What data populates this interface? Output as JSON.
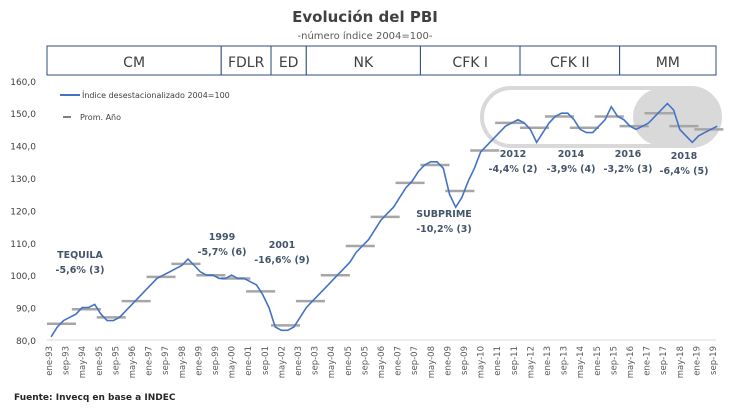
{
  "chart_data": {
    "type": "line",
    "title": "Evolución del PBI",
    "subtitle": "-número índice 2004=100-",
    "ylim": [
      80,
      160
    ],
    "yticks": [
      "80,0",
      "90,0",
      "100,0",
      "110,0",
      "120,0",
      "130,0",
      "140,0",
      "150,0",
      "160,0"
    ],
    "ytick_values": [
      80,
      90,
      100,
      110,
      120,
      130,
      140,
      150,
      160
    ],
    "xticks": [
      "ene-93",
      "sep-93",
      "may-94",
      "ene-95",
      "sep-95",
      "may-96",
      "ene-97",
      "sep-97",
      "may-98",
      "ene-99",
      "sep-99",
      "may-00",
      "ene-01",
      "sep-01",
      "may-02",
      "ene-03",
      "sep-03",
      "may-04",
      "ene-05",
      "sep-05",
      "may-06",
      "ene-07",
      "sep-07",
      "may-08",
      "ene-09",
      "sep-09",
      "may-10",
      "ene-11",
      "sep-11",
      "may-12",
      "ene-13",
      "sep-13",
      "may-14",
      "ene-15",
      "sep-15",
      "may-16",
      "ene-17",
      "sep-17",
      "may-18",
      "ene-19",
      "sep-19"
    ],
    "periods": [
      {
        "label": "CM",
        "start": "1993-01",
        "end": "1999-12"
      },
      {
        "label": "FDLR",
        "start": "1999-12",
        "end": "2001-12"
      },
      {
        "label": "ED",
        "start": "2001-12",
        "end": "2003-05"
      },
      {
        "label": "NK",
        "start": "2003-05",
        "end": "2007-12"
      },
      {
        "label": "CFK I",
        "start": "2007-12",
        "end": "2011-12"
      },
      {
        "label": "CFK II",
        "start": "2011-12",
        "end": "2015-12"
      },
      {
        "label": "MM",
        "start": "2015-12",
        "end": "2019-09"
      }
    ],
    "legend": [
      "Índice desestacionalizado 2004=100",
      "Prom. Año"
    ],
    "series": [
      {
        "name": "Índice desestacionalizado 2004=100",
        "frequency": "quarterly",
        "start_year": 1993,
        "values": [
          81,
          84,
          86,
          87,
          88,
          90,
          90,
          91,
          88,
          86,
          86,
          87,
          89,
          91,
          93,
          95,
          97,
          99,
          100,
          101,
          102,
          103,
          105,
          103,
          101,
          100,
          100,
          99,
          99,
          100,
          99,
          99,
          98,
          97,
          94,
          90,
          84,
          83,
          83,
          84,
          87,
          90,
          92,
          94,
          96,
          98,
          100,
          102,
          104,
          107,
          109,
          111,
          114,
          117,
          119,
          121,
          124,
          127,
          129,
          132,
          134,
          135,
          135,
          133,
          125,
          121,
          124,
          129,
          133,
          138,
          140,
          142,
          144,
          146,
          147,
          148,
          147,
          145,
          141,
          144,
          147,
          149,
          150,
          150,
          148,
          145,
          144,
          144,
          146,
          148,
          152,
          149,
          148,
          146,
          145,
          146,
          147,
          149,
          151,
          153,
          151,
          145,
          143,
          141,
          143,
          144,
          145,
          146
        ]
      },
      {
        "name": "Prom. Año",
        "years": [
          1993,
          1994,
          1995,
          1996,
          1997,
          1998,
          1999,
          2000,
          2001,
          2002,
          2003,
          2004,
          2005,
          2006,
          2007,
          2008,
          2009,
          2010,
          2011,
          2012,
          2013,
          2014,
          2015,
          2016,
          2017,
          2018,
          2019
        ],
        "values": [
          85,
          89.5,
          87,
          92,
          99.5,
          103.5,
          100,
          99,
          95,
          84.5,
          92,
          100,
          109,
          118,
          128.5,
          134,
          126,
          138.5,
          147,
          145.5,
          149,
          145.5,
          149,
          146,
          150,
          146,
          145
        ]
      }
    ],
    "annotations": [
      {
        "title": "TEQUILA",
        "text": "-5,6% (3)"
      },
      {
        "title": "1999",
        "text": "-5,7% (6)"
      },
      {
        "title": "2001",
        "text": "-16,6% (9)"
      },
      {
        "title": "SUBPRIME",
        "text": "-10,2% (3)"
      },
      {
        "title": "2012",
        "text": "-4,4% (2)"
      },
      {
        "title": "2014",
        "text": "-3,9% (4)"
      },
      {
        "title": "2016",
        "text": "-3,2% (3)"
      },
      {
        "title": "2018",
        "text": "-6,4% (5)"
      }
    ],
    "source": "Fuente: Invecq en base a INDEC",
    "colors": {
      "line": "#4472c4",
      "avg": "#a6a6a6",
      "box": "#2f4b7c"
    }
  }
}
